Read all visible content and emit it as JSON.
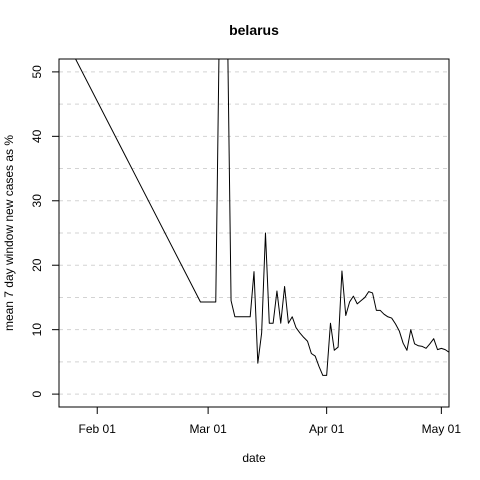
{
  "chart_data": {
    "type": "line",
    "title": "belarus",
    "xlabel": "date",
    "ylabel": "mean  7  day window new cases as %",
    "xlim": [
      "2020-01-22",
      "2020-05-03"
    ],
    "ylim": [
      -2,
      52
    ],
    "grid": "horizontal dashed",
    "x_ticks": [
      {
        "date": "2020-02-01",
        "label": "Feb 01"
      },
      {
        "date": "2020-03-01",
        "label": "Mar 01"
      },
      {
        "date": "2020-04-01",
        "label": "Apr 01"
      },
      {
        "date": "2020-05-01",
        "label": "May 01"
      }
    ],
    "y_ticks": [
      0,
      10,
      20,
      30,
      40,
      50
    ],
    "y_grid": [
      0,
      5,
      10,
      15,
      20,
      25,
      30,
      35,
      40,
      45,
      50
    ],
    "series": [
      {
        "color": "#000000",
        "points": [
          [
            "2020-01-22",
            57
          ],
          [
            "2020-02-28",
            14.3
          ],
          [
            "2020-03-03",
            14.3
          ],
          [
            "2020-03-04",
            60
          ],
          [
            "2020-03-06",
            60
          ],
          [
            "2020-03-07",
            14.5
          ],
          [
            "2020-03-08",
            12
          ],
          [
            "2020-03-12",
            12
          ],
          [
            "2020-03-13",
            19
          ],
          [
            "2020-03-14",
            4.8
          ],
          [
            "2020-03-15",
            9.5
          ],
          [
            "2020-03-16",
            25
          ],
          [
            "2020-03-17",
            11
          ],
          [
            "2020-03-18",
            11
          ],
          [
            "2020-03-19",
            16
          ],
          [
            "2020-03-20",
            11
          ],
          [
            "2020-03-21",
            16.7
          ],
          [
            "2020-03-22",
            11
          ],
          [
            "2020-03-23",
            12
          ],
          [
            "2020-03-24",
            10.3
          ],
          [
            "2020-03-25",
            9.5
          ],
          [
            "2020-03-26",
            8.8
          ],
          [
            "2020-03-27",
            8.2
          ],
          [
            "2020-03-28",
            6.3
          ],
          [
            "2020-03-29",
            5.9
          ],
          [
            "2020-03-30",
            4.3
          ],
          [
            "2020-03-31",
            2.9
          ],
          [
            "2020-04-01",
            2.9
          ],
          [
            "2020-04-02",
            11
          ],
          [
            "2020-04-03",
            6.8
          ],
          [
            "2020-04-04",
            7.3
          ],
          [
            "2020-04-05",
            19.1
          ],
          [
            "2020-04-06",
            12.2
          ],
          [
            "2020-04-07",
            14.3
          ],
          [
            "2020-04-08",
            15.2
          ],
          [
            "2020-04-09",
            14
          ],
          [
            "2020-04-10",
            14.5
          ],
          [
            "2020-04-11",
            15
          ],
          [
            "2020-04-12",
            15.9
          ],
          [
            "2020-04-13",
            15.7
          ],
          [
            "2020-04-14",
            13
          ],
          [
            "2020-04-15",
            13
          ],
          [
            "2020-04-16",
            12.4
          ],
          [
            "2020-04-17",
            12
          ],
          [
            "2020-04-18",
            11.8
          ],
          [
            "2020-04-19",
            10.9
          ],
          [
            "2020-04-20",
            9.8
          ],
          [
            "2020-04-21",
            7.9
          ],
          [
            "2020-04-22",
            6.8
          ],
          [
            "2020-04-23",
            10
          ],
          [
            "2020-04-24",
            7.8
          ],
          [
            "2020-04-25",
            7.5
          ],
          [
            "2020-04-26",
            7.4
          ],
          [
            "2020-04-27",
            7.1
          ],
          [
            "2020-04-28",
            7.8
          ],
          [
            "2020-04-29",
            8.6
          ],
          [
            "2020-04-30",
            6.9
          ],
          [
            "2020-05-01",
            7.1
          ],
          [
            "2020-05-02",
            6.9
          ],
          [
            "2020-05-03",
            6.5
          ]
        ]
      }
    ]
  }
}
